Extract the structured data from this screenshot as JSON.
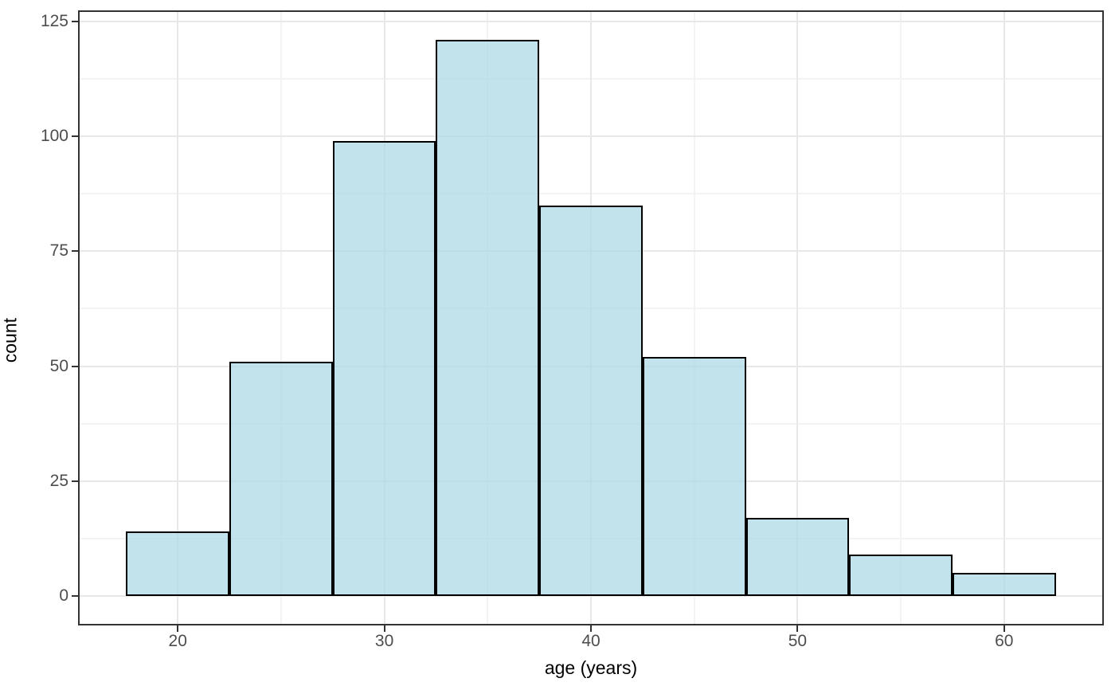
{
  "chart_data": {
    "type": "bar",
    "subtype": "histogram",
    "title": "",
    "xlabel": "age (years)",
    "ylabel": "count",
    "bin_edges": [
      17.5,
      22.5,
      27.5,
      32.5,
      37.5,
      42.5,
      47.5,
      52.5,
      57.5,
      62.5
    ],
    "counts": [
      14,
      51,
      99,
      121,
      85,
      52,
      17,
      9,
      5
    ],
    "x_major_ticks": [
      20,
      30,
      40,
      50,
      60
    ],
    "x_tick_labels": [
      "20",
      "30",
      "40",
      "50",
      "60"
    ],
    "y_major_ticks": [
      0,
      25,
      50,
      75,
      100,
      125
    ],
    "y_tick_labels": [
      "0",
      "25",
      "50",
      "75",
      "100",
      "125"
    ],
    "x_minor_gridlines": [
      25,
      35,
      45,
      55
    ],
    "y_minor_gridlines": [
      12.5,
      37.5,
      62.5,
      87.5,
      112.5
    ],
    "xlim": [
      15.25,
      64.75
    ],
    "ylim": [
      -6.05,
      127.05
    ],
    "grid": "on",
    "legend": "none",
    "colors": {
      "bar_fill": "rgba(173,216,230,0.75)",
      "bar_stroke": "#000000",
      "grid_major": "#E8E8E8",
      "grid_minor": "#F3F3F3",
      "panel_border": "#333333",
      "tick_mark": "#333333",
      "tick_label": "#4D4D4D",
      "axis_title": "#000000",
      "background": "#FFFFFF"
    }
  }
}
